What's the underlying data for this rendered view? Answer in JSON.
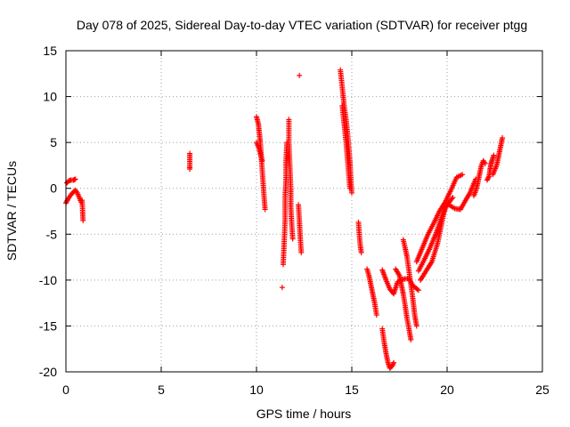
{
  "chart_data": {
    "type": "scatter",
    "title": "Day 078 of 2025, Sidereal Day-to-day VTEC variation (SDTVAR) for receiver ptgg",
    "xlabel": "GPS time / hours",
    "ylabel": "SDTVAR / TECUs",
    "xlim": [
      0,
      25
    ],
    "ylim": [
      -20,
      15
    ],
    "xticks": [
      0,
      5,
      10,
      15,
      20,
      25
    ],
    "yticks": [
      -20,
      -15,
      -10,
      -5,
      0,
      5,
      10,
      15
    ],
    "grid": true,
    "marker": "+",
    "color": "#ff0000",
    "series": [
      {
        "segments": [
          [
            [
              0.0,
              -1.6
            ],
            [
              0.1,
              -1.2
            ],
            [
              0.2,
              -0.9
            ],
            [
              0.3,
              -0.6
            ],
            [
              0.4,
              -0.4
            ],
            [
              0.5,
              -0.2
            ],
            [
              0.6,
              -0.5
            ],
            [
              0.7,
              -1.0
            ],
            [
              0.8,
              -1.5
            ]
          ],
          [
            [
              0.05,
              0.6
            ],
            [
              0.15,
              0.8
            ],
            [
              0.25,
              0.9
            ],
            [
              0.4,
              0.9
            ],
            [
              0.5,
              1.0
            ]
          ],
          [
            [
              0.85,
              -1.3
            ],
            [
              0.88,
              -2.6
            ],
            [
              0.9,
              -3.5
            ]
          ],
          [
            [
              6.5,
              3.8
            ],
            [
              6.5,
              3.3
            ],
            [
              6.5,
              2.4
            ],
            [
              6.5,
              2.1
            ]
          ],
          [
            [
              10.0,
              7.8
            ],
            [
              10.1,
              7.0
            ],
            [
              10.15,
              6.0
            ],
            [
              10.2,
              5.0
            ],
            [
              10.25,
              3.5
            ],
            [
              10.3,
              2.0
            ],
            [
              10.35,
              0.5
            ],
            [
              10.4,
              -1.0
            ],
            [
              10.45,
              -2.3
            ]
          ],
          [
            [
              10.0,
              5.0
            ],
            [
              10.1,
              4.5
            ],
            [
              10.2,
              3.8
            ],
            [
              10.3,
              3.0
            ]
          ],
          [
            [
              11.35,
              -10.8
            ]
          ],
          [
            [
              11.4,
              -8.3
            ],
            [
              11.45,
              -6.0
            ],
            [
              11.5,
              -3.5
            ],
            [
              11.5,
              -1.0
            ],
            [
              11.55,
              1.0
            ],
            [
              11.55,
              3.0
            ],
            [
              11.6,
              5.0
            ]
          ],
          [
            [
              11.7,
              7.5
            ],
            [
              11.7,
              5.0
            ],
            [
              11.75,
              2.5
            ],
            [
              11.8,
              0.0
            ],
            [
              11.8,
              -2.0
            ],
            [
              11.85,
              -4.0
            ],
            [
              11.9,
              -5.5
            ]
          ],
          [
            [
              12.2,
              -1.8
            ],
            [
              12.25,
              -3.5
            ],
            [
              12.3,
              -5.5
            ],
            [
              12.35,
              -7.0
            ]
          ],
          [
            [
              12.25,
              12.3
            ]
          ],
          [
            [
              14.4,
              12.9
            ],
            [
              14.5,
              11.0
            ],
            [
              14.6,
              9.0
            ],
            [
              14.7,
              7.5
            ],
            [
              14.8,
              5.5
            ],
            [
              14.9,
              3.0
            ],
            [
              14.95,
              1.0
            ],
            [
              15.0,
              -0.5
            ]
          ],
          [
            [
              14.5,
              9.0
            ],
            [
              14.6,
              7.0
            ],
            [
              14.7,
              5.0
            ],
            [
              14.8,
              2.5
            ],
            [
              14.9,
              0.0
            ]
          ],
          [
            [
              15.35,
              -3.7
            ],
            [
              15.4,
              -5.2
            ],
            [
              15.45,
              -6.3
            ],
            [
              15.5,
              -7.0
            ]
          ],
          [
            [
              15.8,
              -8.8
            ],
            [
              15.9,
              -9.5
            ],
            [
              16.0,
              -10.5
            ],
            [
              16.1,
              -11.5
            ],
            [
              16.2,
              -12.5
            ],
            [
              16.3,
              -13.8
            ]
          ],
          [
            [
              16.6,
              -15.3
            ],
            [
              16.7,
              -16.8
            ],
            [
              16.8,
              -18.0
            ],
            [
              16.9,
              -19.0
            ],
            [
              17.0,
              -19.6
            ],
            [
              17.1,
              -19.4
            ],
            [
              17.2,
              -19.0
            ]
          ],
          [
            [
              16.6,
              -8.9
            ],
            [
              16.8,
              -10.0
            ],
            [
              17.0,
              -11.0
            ],
            [
              17.2,
              -11.5
            ],
            [
              17.4,
              -10.2
            ],
            [
              17.7,
              -9.9
            ],
            [
              18.0,
              -9.8
            ],
            [
              18.2,
              -10.6
            ],
            [
              18.5,
              -11.1
            ]
          ],
          [
            [
              17.3,
              -8.8
            ],
            [
              17.5,
              -9.5
            ],
            [
              17.6,
              -10.5
            ],
            [
              17.7,
              -11.5
            ],
            [
              17.8,
              -12.8
            ],
            [
              17.9,
              -14.2
            ],
            [
              18.0,
              -15.3
            ],
            [
              18.1,
              -16.5
            ]
          ],
          [
            [
              17.7,
              -5.6
            ],
            [
              17.8,
              -6.5
            ],
            [
              17.9,
              -7.5
            ],
            [
              18.0,
              -9.0
            ],
            [
              18.1,
              -10.5
            ],
            [
              18.2,
              -12.0
            ],
            [
              18.3,
              -13.8
            ],
            [
              18.4,
              -15.0
            ]
          ],
          [
            [
              18.4,
              -8.0
            ],
            [
              18.7,
              -6.5
            ],
            [
              19.0,
              -5.0
            ],
            [
              19.3,
              -3.8
            ],
            [
              19.6,
              -2.5
            ],
            [
              19.9,
              -1.5
            ],
            [
              20.2,
              -0.2
            ],
            [
              20.5,
              1.2
            ],
            [
              20.8,
              1.5
            ]
          ],
          [
            [
              18.5,
              -9.0
            ],
            [
              18.8,
              -7.8
            ],
            [
              19.1,
              -6.5
            ],
            [
              19.4,
              -5.0
            ],
            [
              19.7,
              -3.2
            ],
            [
              20.0,
              -1.8
            ],
            [
              20.3,
              -1.0
            ]
          ],
          [
            [
              18.6,
              -10.0
            ],
            [
              18.9,
              -9.0
            ],
            [
              19.2,
              -8.0
            ],
            [
              19.5,
              -6.0
            ],
            [
              19.7,
              -4.0
            ],
            [
              19.9,
              -2.0
            ]
          ],
          [
            [
              20.1,
              -1.8
            ],
            [
              20.4,
              -2.2
            ],
            [
              20.7,
              -2.3
            ],
            [
              21.0,
              -1.2
            ],
            [
              21.2,
              -0.5
            ],
            [
              21.4,
              0.5
            ],
            [
              21.5,
              1.0
            ]
          ],
          [
            [
              21.4,
              -0.8
            ],
            [
              21.5,
              -0.3
            ],
            [
              21.6,
              0.5
            ],
            [
              21.7,
              1.5
            ],
            [
              21.8,
              2.5
            ],
            [
              21.9,
              3.0
            ],
            [
              22.0,
              2.7
            ]
          ],
          [
            [
              22.1,
              0.9
            ],
            [
              22.2,
              1.3
            ],
            [
              22.25,
              2.0
            ],
            [
              22.3,
              2.6
            ],
            [
              22.35,
              3.0
            ],
            [
              22.4,
              3.3
            ],
            [
              22.45,
              3.6
            ]
          ],
          [
            [
              22.4,
              1.5
            ],
            [
              22.5,
              2.0
            ],
            [
              22.6,
              2.5
            ],
            [
              22.7,
              3.5
            ],
            [
              22.8,
              4.5
            ],
            [
              22.9,
              5.5
            ]
          ]
        ]
      }
    ]
  }
}
